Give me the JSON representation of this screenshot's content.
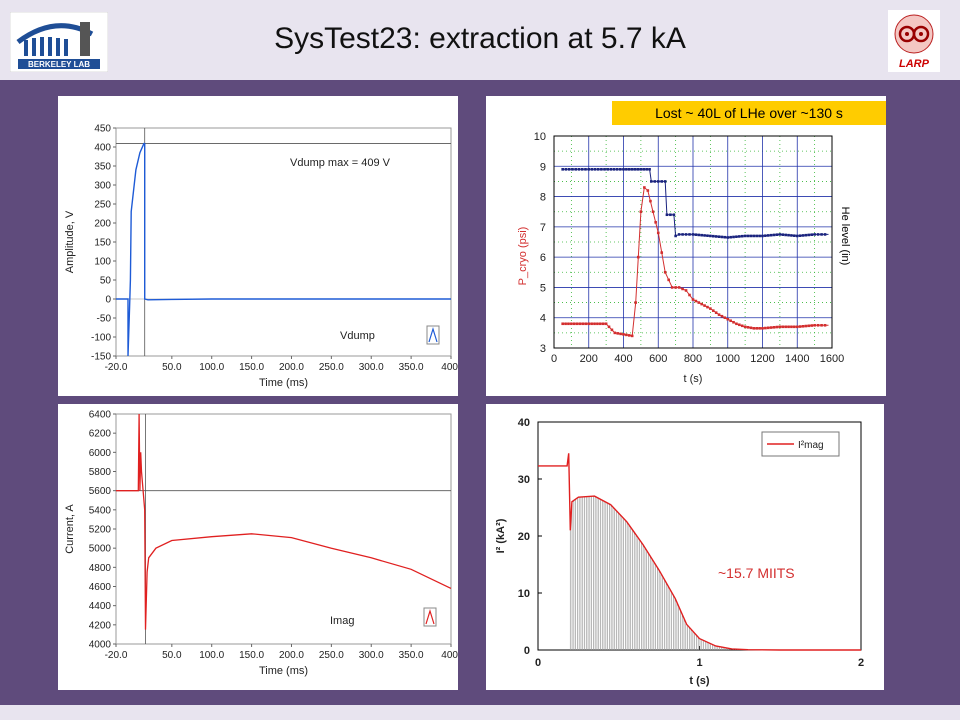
{
  "header": {
    "title": "SysTest23: extraction at 5.7 kA",
    "logo_left_text": "BERKELEY LAB",
    "logo_right_text": "LARP"
  },
  "chart_data": [
    {
      "type": "line",
      "xlabel": "Time (ms)",
      "ylabel": "Amplitude, V",
      "xlim": [
        -20,
        400
      ],
      "ylim": [
        -150,
        450
      ],
      "xticks": [
        "-20.0",
        "50.0",
        "100.0",
        "150.0",
        "200.0",
        "250.0",
        "300.0",
        "350.0",
        "400."
      ],
      "yticks": [
        "450",
        "400",
        "350",
        "300",
        "250",
        "200",
        "150",
        "100",
        "50",
        "0",
        "-50",
        "-100",
        "-150"
      ],
      "annotation": "Vdump max = 409 V",
      "legend": "Vdump",
      "series": [
        {
          "name": "Vdump",
          "x": [
            -20,
            -5,
            -5,
            -3,
            -2,
            -1,
            5,
            10,
            15,
            16,
            16,
            20,
            50,
            100,
            200,
            300,
            400
          ],
          "y": [
            0,
            0,
            -150,
            -20,
            50,
            230,
            340,
            385,
            409,
            409,
            0,
            -2,
            -1,
            0,
            0,
            0,
            0
          ]
        }
      ],
      "cursor_x": 16,
      "cursor_y": 409
    },
    {
      "type": "scatter",
      "annotation": "Lost ~ 40L of LHe over ~130 s",
      "xlabel": "t (s)",
      "ylabel": "P_cryo (psi)",
      "ylabel_right": "He level (in)",
      "xlim": [
        0,
        1600
      ],
      "ylim": [
        3,
        10
      ],
      "xticks": [
        "0",
        "200",
        "400",
        "600",
        "800",
        "1000",
        "1200",
        "1400",
        "1600"
      ],
      "yticks": [
        "3",
        "4",
        "5",
        "6",
        "7",
        "8",
        "9",
        "10"
      ],
      "series": [
        {
          "name": "He level",
          "color": "#1a237e",
          "x": [
            50,
            200,
            400,
            500,
            550,
            560,
            600,
            640,
            650,
            690,
            700,
            720,
            800,
            900,
            1000,
            1100,
            1200,
            1300,
            1400,
            1500,
            1580
          ],
          "y": [
            8.9,
            8.9,
            8.9,
            8.9,
            8.9,
            8.5,
            8.5,
            8.5,
            7.4,
            7.4,
            6.7,
            6.75,
            6.75,
            6.7,
            6.65,
            6.7,
            6.7,
            6.75,
            6.7,
            6.75,
            6.75
          ]
        },
        {
          "name": "P_cryo",
          "color": "#d32f2f",
          "x": [
            50,
            150,
            250,
            300,
            350,
            400,
            450,
            470,
            500,
            520,
            540,
            570,
            600,
            640,
            680,
            720,
            760,
            800,
            850,
            900,
            950,
            1000,
            1050,
            1100,
            1150,
            1200,
            1300,
            1400,
            1500,
            1580
          ],
          "y": [
            3.8,
            3.8,
            3.8,
            3.8,
            3.5,
            3.45,
            3.4,
            4.5,
            7.5,
            8.3,
            8.2,
            7.5,
            6.8,
            5.5,
            5.0,
            5.0,
            4.9,
            4.6,
            4.45,
            4.3,
            4.1,
            3.95,
            3.8,
            3.7,
            3.65,
            3.65,
            3.7,
            3.7,
            3.75,
            3.75
          ]
        }
      ]
    },
    {
      "type": "line",
      "xlabel": "Time (ms)",
      "ylabel": "Current, A",
      "xlim": [
        -20,
        400
      ],
      "ylim": [
        4000,
        6400
      ],
      "xticks": [
        "-20.0",
        "50.0",
        "100.0",
        "150.0",
        "200.0",
        "250.0",
        "300.0",
        "350.0",
        "400."
      ],
      "yticks": [
        "6400",
        "6200",
        "6000",
        "5800",
        "5600",
        "5400",
        "5200",
        "5000",
        "4800",
        "4600",
        "4400",
        "4200",
        "4000"
      ],
      "legend": "Imag",
      "series": [
        {
          "name": "Imag",
          "x": [
            -20,
            5,
            8,
            9,
            10,
            11,
            12,
            14,
            16,
            17,
            19,
            21,
            30,
            50,
            100,
            150,
            200,
            250,
            300,
            350,
            400
          ],
          "y": [
            5600,
            5600,
            5600,
            6400,
            5600,
            6000,
            5800,
            5600,
            5400,
            4150,
            4750,
            4900,
            5000,
            5080,
            5120,
            5150,
            5110,
            5000,
            4900,
            4780,
            4580
          ]
        }
      ],
      "cursor_x": 17,
      "cursor_y": 5600
    },
    {
      "type": "area",
      "xlabel": "t (s)",
      "ylabel": "I² (kA²)",
      "xlim": [
        0,
        2
      ],
      "ylim": [
        0,
        40
      ],
      "xticks": [
        "0",
        "1",
        "2"
      ],
      "yticks": [
        "0",
        "10",
        "20",
        "30",
        "40"
      ],
      "legend": "I²mag",
      "annotation": "~15.7 MIITS",
      "series": [
        {
          "name": "I²mag",
          "x": [
            0,
            0.18,
            0.19,
            0.2,
            0.21,
            0.25,
            0.35,
            0.45,
            0.55,
            0.65,
            0.75,
            0.85,
            0.92,
            1.0,
            1.1,
            1.2,
            1.3,
            1.5,
            2.0
          ],
          "y": [
            32.3,
            32.3,
            34.5,
            21,
            26,
            26.8,
            27,
            25.5,
            22.5,
            18.5,
            14,
            9,
            4.5,
            2,
            0.7,
            0.2,
            0.05,
            0,
            0
          ]
        }
      ]
    }
  ]
}
